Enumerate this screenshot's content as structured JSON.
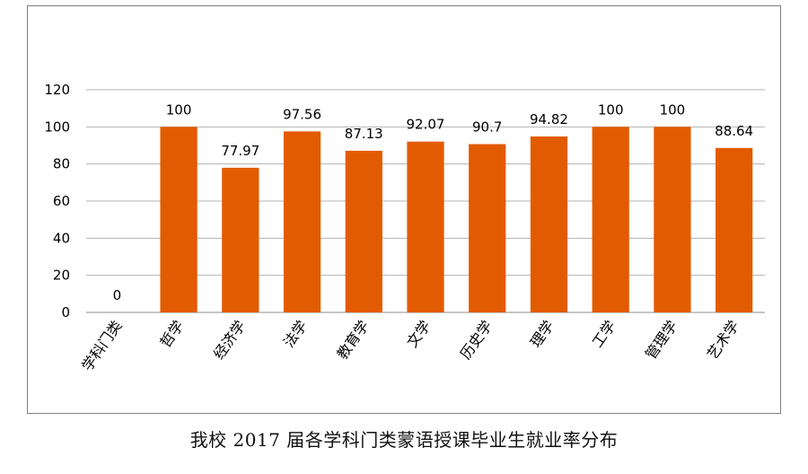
{
  "caption": "我校 2017 届各学科门类蒙语授课毕业生就业率分布",
  "chart_data": {
    "type": "bar",
    "categories": [
      "学科门类",
      "哲学",
      "经济学",
      "法学",
      "教育学",
      "文学",
      "历史学",
      "理学",
      "工学",
      "管理学",
      "艺术学"
    ],
    "values": [
      0,
      100,
      77.97,
      97.56,
      87.13,
      92.07,
      90.7,
      94.82,
      100,
      100,
      88.64
    ],
    "value_labels": [
      "0",
      "100",
      "77.97",
      "97.56",
      "87.13",
      "92.07",
      "90.7",
      "94.82",
      "100",
      "100",
      "88.64"
    ],
    "ylim": [
      0,
      120
    ],
    "yticks": [
      0,
      20,
      40,
      60,
      80,
      100,
      120
    ],
    "grid": true,
    "legend": "none",
    "bar_color": "#e35b00"
  }
}
